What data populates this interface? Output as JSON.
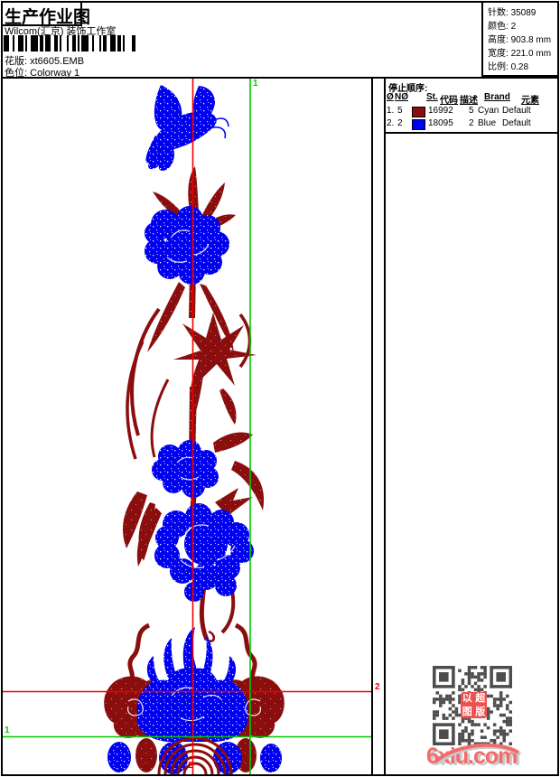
{
  "page": {
    "title": "生产作业图",
    "subtitle": "Wilcom(汇京) 装饰工作室"
  },
  "header": {
    "fields": [
      {
        "label": "花版:",
        "value": "xt6605.EMB"
      },
      {
        "label": "色位:",
        "value": "Colorway 1"
      }
    ],
    "info": [
      {
        "label": "针数:",
        "value": "35089"
      },
      {
        "label": "颜色:",
        "value": "2"
      },
      {
        "label": "高度:",
        "value": "903.8 mm"
      },
      {
        "label": "宽度:",
        "value": "221.0 mm"
      },
      {
        "label": "比例:",
        "value": "0.28"
      }
    ]
  },
  "stop_table": {
    "title": "停止顺序:",
    "headers": [
      "Ø",
      "NØ",
      "St.",
      "代码",
      "描述",
      "Brand",
      "元素"
    ],
    "rows": [
      {
        "no": "1.",
        "needle": "5",
        "color": "#8b0e0e",
        "st": "16992",
        "code": "5",
        "desc": "Cyan",
        "brand": "Default",
        "element": ""
      },
      {
        "no": "2.",
        "needle": "2",
        "color": "#0000f0",
        "st": "18095",
        "code": "2",
        "desc": "Blue",
        "brand": "Default",
        "element": ""
      }
    ]
  },
  "guides": {
    "v_green_label": "1",
    "v_red_label": "2",
    "h_red_label": "2",
    "h_green_label": "1"
  },
  "watermark": {
    "text": "6xiu.com",
    "color": "#f26b6b"
  },
  "seal": {
    "chars": [
      "以",
      "超",
      "图",
      "版"
    ],
    "color": "#ee4f4f"
  },
  "palette": {
    "thread_blue": "#0000f0",
    "thread_maroon": "#8b0e0e",
    "guide_red": "#f00000",
    "guide_green": "#00c800",
    "qr_gray": "#4d4d4d"
  }
}
